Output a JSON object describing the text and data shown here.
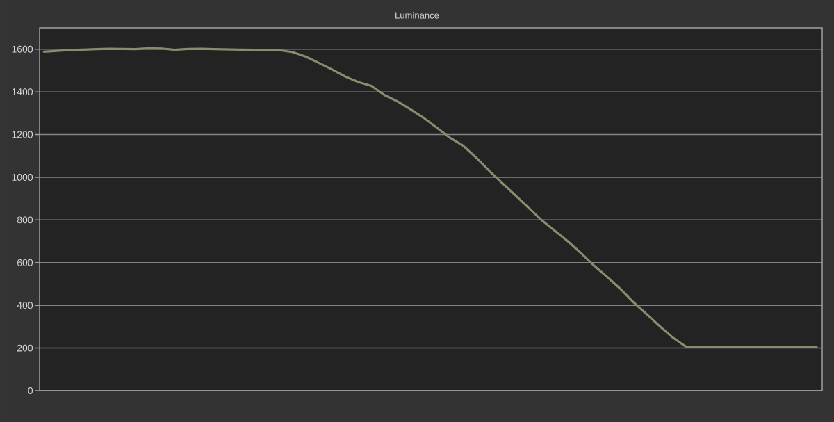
{
  "chart_data": {
    "type": "line",
    "title": "Luminance",
    "categories": [
      null,
      null,
      null,
      null,
      null,
      null,
      null,
      null,
      null,
      null,
      null,
      null,
      null,
      null,
      null,
      null,
      null,
      null,
      null,
      null,
      null,
      null,
      null,
      null,
      null,
      null,
      null,
      null,
      null,
      null,
      null,
      null,
      null,
      null,
      null,
      null,
      null,
      null,
      null,
      null,
      null,
      null,
      null,
      null,
      null,
      null,
      null,
      null,
      null,
      null,
      null,
      null,
      null,
      null,
      null,
      null,
      null,
      null,
      null,
      null
    ],
    "series": [
      {
        "color": "#8b8b6f",
        "values": [
          1588,
          1592,
          1596,
          1598,
          1600,
          1602,
          1601,
          1600,
          1604,
          1603,
          1597,
          1601,
          1602,
          1600,
          1599,
          1598,
          1597,
          1596,
          1595,
          1586,
          1565,
          1535,
          1505,
          1472,
          1446,
          1428,
          1385,
          1355,
          1318,
          1278,
          1232,
          1185,
          1148,
          1092,
          1030,
          972,
          915,
          857,
          799,
          750,
          700,
          645,
          586,
          533,
          478,
          415,
          360,
          303,
          250,
          207,
          204,
          204,
          205,
          205,
          206,
          206,
          206,
          205,
          205,
          204
        ]
      }
    ],
    "ylim": [
      0,
      1700
    ],
    "yticks": [
      0,
      200,
      400,
      600,
      800,
      1000,
      1200,
      1400,
      1600
    ],
    "grid": "y",
    "tick_labels": "y",
    "line_style": "solid"
  }
}
